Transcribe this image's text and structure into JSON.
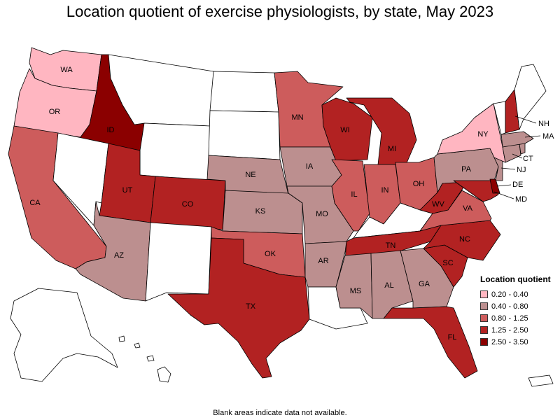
{
  "title": "Location quotient of exercise physiologists, by state, May 2023",
  "footnote": "Blank areas indicate data not available.",
  "legend": {
    "title": "Location quotient",
    "items": [
      {
        "label": "0.20 - 0.40",
        "color": "#ffb6c1"
      },
      {
        "label": "0.40 - 0.80",
        "color": "#bc8f8f"
      },
      {
        "label": "0.80 - 1.25",
        "color": "#cd5c5c"
      },
      {
        "label": "1.25 - 2.50",
        "color": "#b22222"
      },
      {
        "label": "2.50 - 3.50",
        "color": "#8b0000"
      }
    ],
    "blank_color": "#ffffff"
  },
  "states": {
    "WA": {
      "label": "WA",
      "class": 0
    },
    "OR": {
      "label": "OR",
      "class": 0
    },
    "CA": {
      "label": "CA",
      "class": 2
    },
    "ID": {
      "label": "ID",
      "class": 4
    },
    "NV": {
      "label": "",
      "class": -1
    },
    "MT": {
      "label": "",
      "class": -1
    },
    "WY": {
      "label": "",
      "class": -1
    },
    "UT": {
      "label": "UT",
      "class": 3
    },
    "AZ": {
      "label": "AZ",
      "class": 1
    },
    "CO": {
      "label": "CO",
      "class": 3
    },
    "NM": {
      "label": "",
      "class": -1
    },
    "ND": {
      "label": "",
      "class": -1
    },
    "SD": {
      "label": "",
      "class": -1
    },
    "NE": {
      "label": "NE",
      "class": 1
    },
    "KS": {
      "label": "KS",
      "class": 1
    },
    "OK": {
      "label": "OK",
      "class": 2
    },
    "TX": {
      "label": "TX",
      "class": 3
    },
    "MN": {
      "label": "MN",
      "class": 2
    },
    "IA": {
      "label": "IA",
      "class": 1
    },
    "MO": {
      "label": "MO",
      "class": 1
    },
    "AR": {
      "label": "AR",
      "class": 1
    },
    "LA": {
      "label": "",
      "class": -1
    },
    "WI": {
      "label": "WI",
      "class": 3
    },
    "IL": {
      "label": "IL",
      "class": 2
    },
    "MI": {
      "label": "MI",
      "class": 3
    },
    "IN": {
      "label": "IN",
      "class": 2
    },
    "OH": {
      "label": "OH",
      "class": 2
    },
    "KY": {
      "label": "",
      "class": -1
    },
    "TN": {
      "label": "TN",
      "class": 3
    },
    "MS": {
      "label": "MS",
      "class": 1
    },
    "AL": {
      "label": "AL",
      "class": 1
    },
    "GA": {
      "label": "GA",
      "class": 1
    },
    "FL": {
      "label": "FL",
      "class": 3
    },
    "SC": {
      "label": "SC",
      "class": 3
    },
    "NC": {
      "label": "NC",
      "class": 3
    },
    "VA": {
      "label": "VA",
      "class": 2
    },
    "WV": {
      "label": "WV",
      "class": 3
    },
    "PA": {
      "label": "PA",
      "class": 1
    },
    "NY": {
      "label": "NY",
      "class": 0
    },
    "VT": {
      "label": "",
      "class": -1
    },
    "NH": {
      "label": "NH",
      "class": 3
    },
    "ME": {
      "label": "",
      "class": -1
    },
    "MA": {
      "label": "MA",
      "class": 1
    },
    "CT": {
      "label": "CT",
      "class": 1
    },
    "RI": {
      "label": "",
      "class": 1
    },
    "NJ": {
      "label": "NJ",
      "class": 1
    },
    "DE": {
      "label": "DE",
      "class": 4
    },
    "MD": {
      "label": "MD",
      "class": 3
    },
    "AK": {
      "label": "",
      "class": -1
    },
    "HI": {
      "label": "",
      "class": -1
    },
    "PR": {
      "label": "",
      "class": -1
    }
  }
}
